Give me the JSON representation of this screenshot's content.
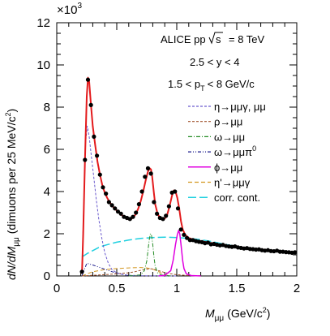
{
  "chart_data": {
    "type": "line",
    "x_label_main": "M",
    "x_label_sub": "μμ",
    "x_label_unit": "(GeV/c",
    "x_label_tail": "2",
    "x_label_close": ")",
    "y_label": "dN/dM",
    "y_label_sub": "μμ",
    "y_label_unit": "(dimuons per 25 MeV/c",
    "y_label_tail": "2",
    "y_label_close": ")",
    "y_multiplier_base": "×10",
    "y_multiplier_exp": "3",
    "xlim": [
      0,
      2
    ],
    "ylim": [
      0,
      12
    ],
    "x_ticks": [
      "0",
      "0.5",
      "1",
      "1.5",
      "2"
    ],
    "y_ticks": [
      "0",
      "2",
      "4",
      "6",
      "8",
      "10",
      "12"
    ],
    "x_tick_values": [
      0,
      0.5,
      1,
      1.5,
      2
    ],
    "y_tick_values": [
      0,
      2,
      4,
      6,
      8,
      10,
      12
    ],
    "annotations": {
      "line1": "ALICE pp",
      "sqrt_label": "s",
      "energy": "= 8 TeV",
      "rapidity": "2.5 < y < 4",
      "pt_left": "1.5 < p",
      "pt_sub": "T",
      "pt_right": "< 8 GeV/c"
    },
    "legend_placement": "right",
    "legend": [
      {
        "key": "eta",
        "label": "η→μμγ, μμ"
      },
      {
        "key": "rho",
        "label": "ρ→μμ"
      },
      {
        "key": "omega",
        "label": "ω→μμ"
      },
      {
        "key": "omega_pi0",
        "label": "ω→μμπ",
        "label_sup": "0"
      },
      {
        "key": "phi",
        "label": "ϕ→μμ"
      },
      {
        "key": "etap",
        "label": "η'→μμγ"
      },
      {
        "key": "corr",
        "label": "corr. cont."
      }
    ],
    "colors": {
      "data": "#000000",
      "fit": "#e31a1c",
      "eta": "#6a5acd",
      "rho": "#a0522d",
      "omega": "#228b22",
      "omega_pi0": "#1a1a8c",
      "phi": "#e000e0",
      "etap": "#d2961e",
      "corr": "#20d0e0"
    },
    "data_points": {
      "x": [
        0.21,
        0.235,
        0.26,
        0.285,
        0.31,
        0.335,
        0.36,
        0.385,
        0.41,
        0.435,
        0.46,
        0.485,
        0.51,
        0.535,
        0.56,
        0.585,
        0.61,
        0.635,
        0.66,
        0.685,
        0.71,
        0.735,
        0.76,
        0.785,
        0.81,
        0.835,
        0.86,
        0.885,
        0.91,
        0.935,
        0.96,
        0.985,
        1.01,
        1.035,
        1.06,
        1.085,
        1.11,
        1.135,
        1.16,
        1.185,
        1.21,
        1.235,
        1.26,
        1.285,
        1.31,
        1.335,
        1.36,
        1.385,
        1.41,
        1.435,
        1.46,
        1.485,
        1.51,
        1.535,
        1.56,
        1.585,
        1.61,
        1.635,
        1.66,
        1.685,
        1.71,
        1.735,
        1.76,
        1.785,
        1.81,
        1.835,
        1.86,
        1.885,
        1.91,
        1.935,
        1.96,
        1.985
      ],
      "y": [
        0.2,
        5.5,
        9.3,
        8.1,
        6.6,
        5.7,
        4.8,
        4.2,
        3.9,
        3.5,
        3.35,
        3.2,
        3.05,
        2.95,
        2.8,
        2.75,
        2.7,
        2.8,
        3.0,
        3.4,
        4.0,
        4.7,
        5.1,
        4.85,
        3.5,
        2.95,
        2.75,
        2.7,
        2.85,
        3.3,
        3.95,
        4.0,
        3.2,
        2.2,
        1.95,
        1.8,
        1.7,
        1.7,
        1.65,
        1.62,
        1.6,
        1.55,
        1.58,
        1.5,
        1.52,
        1.48,
        1.45,
        1.47,
        1.42,
        1.4,
        1.38,
        1.4,
        1.35,
        1.33,
        1.3,
        1.32,
        1.28,
        1.27,
        1.25,
        1.26,
        1.22,
        1.2,
        1.22,
        1.18,
        1.17,
        1.2,
        1.15,
        1.15,
        1.13,
        1.12,
        1.1,
        1.12
      ]
    },
    "series": [
      {
        "key": "fit",
        "x": [
          0.21,
          0.22,
          0.235,
          0.25,
          0.26,
          0.27,
          0.285,
          0.3,
          0.32,
          0.34,
          0.36,
          0.38,
          0.4,
          0.42,
          0.44,
          0.46,
          0.48,
          0.5,
          0.52,
          0.54,
          0.56,
          0.58,
          0.6,
          0.62,
          0.64,
          0.66,
          0.68,
          0.7,
          0.72,
          0.74,
          0.76,
          0.775,
          0.785,
          0.795,
          0.81,
          0.82,
          0.84,
          0.86,
          0.88,
          0.9,
          0.92,
          0.94,
          0.96,
          0.975,
          0.99,
          1.005,
          1.02,
          1.035,
          1.05,
          1.07,
          1.1,
          1.15,
          1.2,
          1.3,
          1.4,
          1.5,
          1.6,
          1.7,
          1.8,
          1.9,
          2.0
        ],
        "y": [
          0.1,
          2.0,
          5.5,
          8.5,
          9.4,
          9.2,
          8.1,
          7.1,
          6.2,
          5.4,
          4.8,
          4.3,
          3.95,
          3.7,
          3.5,
          3.35,
          3.2,
          3.1,
          3.0,
          2.9,
          2.8,
          2.72,
          2.68,
          2.7,
          2.78,
          2.95,
          3.2,
          3.55,
          4.0,
          4.5,
          4.95,
          5.1,
          5.05,
          4.7,
          3.9,
          3.4,
          2.95,
          2.75,
          2.68,
          2.72,
          2.9,
          3.3,
          3.8,
          4.05,
          4.0,
          3.7,
          3.2,
          2.6,
          2.2,
          1.95,
          1.8,
          1.7,
          1.65,
          1.55,
          1.45,
          1.38,
          1.32,
          1.25,
          1.2,
          1.15,
          1.1
        ]
      },
      {
        "key": "eta",
        "x": [
          0.21,
          0.225,
          0.24,
          0.255,
          0.27,
          0.29,
          0.31,
          0.33,
          0.35,
          0.375,
          0.4,
          0.43,
          0.46,
          0.5,
          0.55,
          0.6,
          0.7,
          0.8,
          0.9,
          1.0
        ],
        "y": [
          0.1,
          3.5,
          6.3,
          7.1,
          6.6,
          5.6,
          4.6,
          3.6,
          2.7,
          1.8,
          1.1,
          0.6,
          0.3,
          0.15,
          0.07,
          0.03,
          0.01,
          0.005,
          0.002,
          0
        ]
      },
      {
        "key": "rho",
        "x": [
          0.21,
          0.3,
          0.4,
          0.5,
          0.6,
          0.65,
          0.7,
          0.75,
          0.78,
          0.8,
          0.85,
          0.9,
          0.95,
          1.0,
          1.05,
          1.1,
          1.2
        ],
        "y": [
          0,
          0.03,
          0.06,
          0.1,
          0.15,
          0.2,
          0.27,
          0.32,
          0.34,
          0.33,
          0.25,
          0.16,
          0.1,
          0.06,
          0.04,
          0.02,
          0.01
        ]
      },
      {
        "key": "omega",
        "x": [
          0.6,
          0.7,
          0.73,
          0.75,
          0.76,
          0.77,
          0.78,
          0.785,
          0.79,
          0.8,
          0.81,
          0.82,
          0.84,
          0.87,
          0.95
        ],
        "y": [
          0,
          0.05,
          0.25,
          0.7,
          1.2,
          1.7,
          1.98,
          2.0,
          1.9,
          1.5,
          0.9,
          0.45,
          0.15,
          0.05,
          0
        ]
      },
      {
        "key": "omega_pi0",
        "x": [
          0.21,
          0.25,
          0.3,
          0.35,
          0.4,
          0.45,
          0.5,
          0.55,
          0.6,
          0.62,
          0.65
        ],
        "y": [
          0,
          0.6,
          0.52,
          0.42,
          0.32,
          0.22,
          0.14,
          0.07,
          0.02,
          0.01,
          0
        ]
      },
      {
        "key": "phi",
        "x": [
          0.85,
          0.9,
          0.95,
          0.97,
          0.99,
          1.005,
          1.015,
          1.025,
          1.035,
          1.05,
          1.06,
          1.08,
          1.12,
          1.2
        ],
        "y": [
          0,
          0.03,
          0.25,
          0.75,
          1.5,
          1.95,
          2.15,
          2.0,
          1.5,
          0.7,
          0.35,
          0.1,
          0.02,
          0
        ]
      },
      {
        "key": "etap",
        "x": [
          0.21,
          0.3,
          0.4,
          0.5,
          0.6,
          0.7,
          0.75,
          0.8,
          0.85,
          0.9,
          0.95
        ],
        "y": [
          0,
          0.2,
          0.3,
          0.35,
          0.38,
          0.4,
          0.38,
          0.32,
          0.2,
          0.05,
          0
        ]
      },
      {
        "key": "corr",
        "x": [
          0.21,
          0.25,
          0.3,
          0.35,
          0.4,
          0.5,
          0.6,
          0.7,
          0.8,
          0.9,
          1.0,
          1.1,
          1.2,
          1.3,
          1.4,
          1.5,
          1.6,
          1.7,
          1.8,
          1.9,
          2.0
        ],
        "y": [
          0.9,
          1.05,
          1.2,
          1.35,
          1.45,
          1.6,
          1.7,
          1.78,
          1.82,
          1.84,
          1.82,
          1.78,
          1.72,
          1.62,
          1.5,
          1.4,
          1.32,
          1.25,
          1.18,
          1.13,
          1.08
        ]
      }
    ]
  }
}
